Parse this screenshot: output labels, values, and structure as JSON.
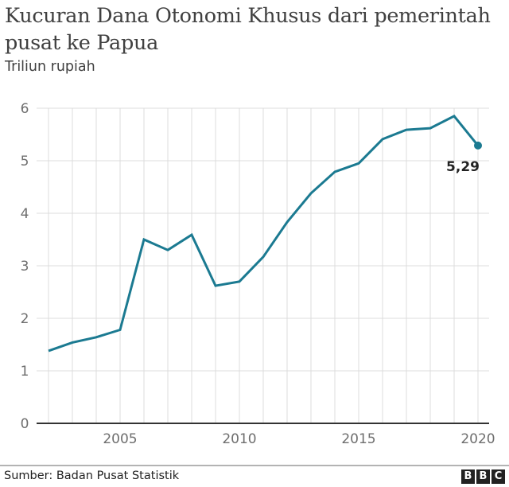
{
  "header": {
    "title": "Kucuran Dana Otonomi Khusus dari pemerintah pusat ke Papua",
    "subtitle": "Triliun rupiah"
  },
  "footer": {
    "source": "Sumber: Badan Pusat Statistik",
    "logo": [
      "B",
      "B",
      "C"
    ]
  },
  "colors": {
    "line": "#1b7a91",
    "grid": "#dcdcdc",
    "axis": "#333333",
    "text": "#404040"
  },
  "chart_data": {
    "type": "line",
    "title": "Kucuran Dana Otonomi Khusus dari pemerintah pusat ke Papua",
    "subtitle": "Triliun rupiah",
    "xlabel": "",
    "ylabel": "Triliun rupiah",
    "x": [
      2002,
      2003,
      2004,
      2005,
      2006,
      2007,
      2008,
      2009,
      2010,
      2011,
      2012,
      2013,
      2014,
      2015,
      2016,
      2017,
      2018,
      2019,
      2020
    ],
    "series": [
      {
        "name": "Dana Otonomi Khusus",
        "values": [
          1.38,
          1.54,
          1.64,
          1.78,
          3.5,
          3.3,
          3.59,
          2.62,
          2.7,
          3.17,
          3.83,
          4.38,
          4.79,
          4.95,
          5.41,
          5.59,
          5.62,
          5.85,
          5.29
        ]
      }
    ],
    "ylim": [
      0,
      6
    ],
    "yticks": [
      0,
      1,
      2,
      3,
      4,
      5,
      6
    ],
    "xticks": [
      2005,
      2010,
      2015,
      2020
    ],
    "grid": true,
    "annotations": [
      {
        "x": 2020,
        "y": 5.29,
        "text": "5,29"
      }
    ],
    "source": "Sumber: Badan Pusat Statistik"
  }
}
